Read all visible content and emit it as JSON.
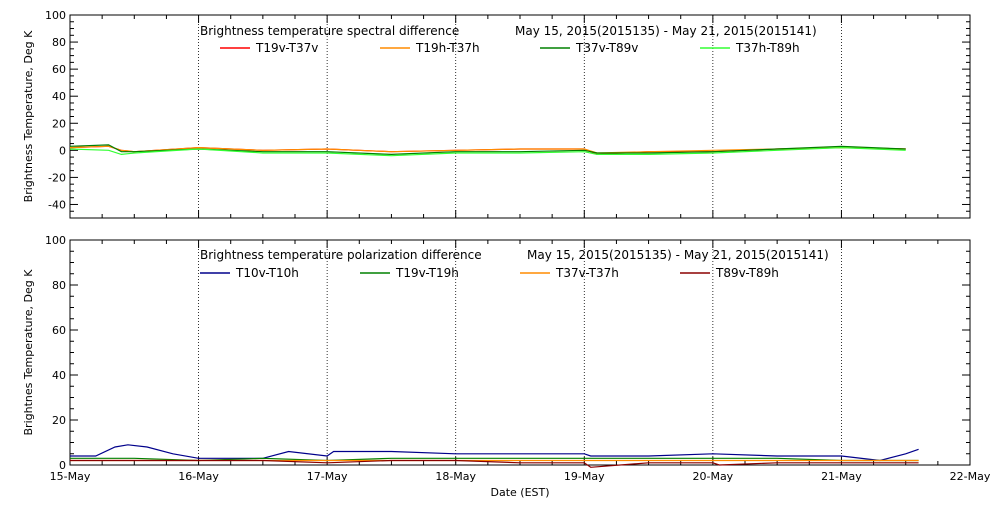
{
  "chart_data": [
    {
      "type": "line",
      "title": "Brightness temperature spectral difference",
      "date_range": "May 15, 2015(2015135) - May 21, 2015(2015141)",
      "ylabel": "Brightness Temperature, Deg K",
      "xlabel": "",
      "ylim": [
        -50,
        100
      ],
      "yticks": [
        "-40",
        "-20",
        "0",
        "20",
        "40",
        "60",
        "80",
        "100"
      ],
      "xlim": [
        "2015-05-15",
        "2015-05-22"
      ],
      "xticks": [],
      "grid": "vertical dotted at each day",
      "legend_position": "top",
      "series": [
        {
          "name": "T19v-T37v",
          "color": "#ff0000",
          "x_days": [
            0,
            0.3,
            0.4,
            0.5,
            1.0,
            1.5,
            2.0,
            2.5,
            3.0,
            3.5,
            4.0,
            4.1,
            4.5,
            5.0,
            5.5,
            6.0,
            6.5
          ],
          "values": [
            2,
            3,
            0,
            -1,
            2,
            0,
            1,
            -1,
            0,
            1,
            1,
            -3,
            -1,
            -1,
            1,
            2,
            1
          ]
        },
        {
          "name": "T19h-T37h",
          "color": "#ff8c00",
          "x_days": [
            0,
            0.3,
            0.4,
            0.5,
            1.0,
            1.5,
            2.0,
            2.5,
            3.0,
            3.5,
            4.0,
            4.1,
            4.5,
            5.0,
            5.5,
            6.0,
            6.5
          ],
          "values": [
            2,
            3,
            0,
            -1,
            2,
            0,
            1,
            -1,
            0,
            1,
            1,
            -2,
            -1,
            0,
            1,
            2,
            1
          ]
        },
        {
          "name": "T37v-T89v",
          "color": "#008000",
          "x_days": [
            0,
            0.3,
            0.4,
            0.5,
            1.0,
            1.5,
            2.0,
            2.5,
            3.0,
            3.5,
            4.0,
            4.1,
            4.5,
            5.0,
            5.5,
            6.0,
            6.5
          ],
          "values": [
            3,
            4,
            -1,
            -1,
            1,
            -1,
            -1,
            -3,
            -1,
            -1,
            0,
            -2,
            -2,
            -1,
            1,
            3,
            1
          ]
        },
        {
          "name": "T37h-T89h",
          "color": "#33ff33",
          "x_days": [
            0,
            0.3,
            0.4,
            0.5,
            1.0,
            1.5,
            2.0,
            2.5,
            3.0,
            3.5,
            4.0,
            4.1,
            4.5,
            5.0,
            5.5,
            6.0,
            6.5
          ],
          "values": [
            1,
            0,
            -3,
            -2,
            1,
            -2,
            -2,
            -4,
            -2,
            -2,
            -1,
            -3,
            -3,
            -2,
            0,
            2,
            0
          ]
        }
      ]
    },
    {
      "type": "line",
      "title": "Brightness temperature polarization difference",
      "date_range": "May 15, 2015(2015135) - May 21, 2015(2015141)",
      "ylabel": "Brightnes Temperature, Deg K",
      "xlabel": "Date (EST)",
      "ylim": [
        0,
        100
      ],
      "yticks": [
        "0",
        "20",
        "40",
        "60",
        "80",
        "100"
      ],
      "xlim": [
        "2015-05-15",
        "2015-05-22"
      ],
      "xticks": [
        "15-May",
        "16-May",
        "17-May",
        "18-May",
        "19-May",
        "20-May",
        "21-May",
        "22-May"
      ],
      "grid": "vertical dotted at each day",
      "legend_position": "top",
      "series": [
        {
          "name": "T10v-T10h",
          "color": "#00008b",
          "x_days": [
            0,
            0.2,
            0.35,
            0.45,
            0.6,
            0.8,
            1.0,
            1.3,
            1.5,
            1.7,
            2.0,
            2.05,
            2.5,
            3.0,
            3.5,
            4.0,
            4.05,
            4.5,
            5.0,
            5.5,
            6.0,
            6.3,
            6.5,
            6.6
          ],
          "values": [
            4,
            4,
            8,
            9,
            8,
            5,
            3,
            3,
            3,
            6,
            4,
            6,
            6,
            5,
            5,
            5,
            4,
            4,
            5,
            4,
            4,
            2,
            5,
            7
          ]
        },
        {
          "name": "T19v-T19h",
          "color": "#008000",
          "x_days": [
            0,
            0.5,
            1.0,
            1.5,
            2.0,
            2.5,
            3.0,
            3.5,
            4.0,
            4.5,
            5.0,
            5.5,
            6.0,
            6.6
          ],
          "values": [
            3,
            3,
            2,
            3,
            2,
            3,
            3,
            3,
            3,
            3,
            3,
            3,
            2,
            2
          ]
        },
        {
          "name": "T37v-T37h",
          "color": "#ff8c00",
          "x_days": [
            0,
            0.5,
            1.0,
            1.5,
            2.0,
            2.5,
            3.0,
            3.5,
            4.0,
            4.5,
            5.0,
            5.5,
            6.0,
            6.6
          ],
          "values": [
            2,
            2,
            2,
            2,
            2,
            2,
            2,
            2,
            2,
            2,
            2,
            2,
            2,
            2
          ]
        },
        {
          "name": "T89v-T89h",
          "color": "#8b0000",
          "x_days": [
            0,
            0.5,
            1.0,
            1.5,
            2.0,
            2.5,
            3.0,
            3.5,
            4.0,
            4.05,
            4.5,
            5.0,
            5.05,
            5.5,
            6.0,
            6.6
          ],
          "values": [
            2,
            2,
            2,
            2,
            1,
            2,
            2,
            1,
            1,
            -1,
            1,
            1,
            0,
            1,
            1,
            1
          ]
        }
      ]
    }
  ]
}
